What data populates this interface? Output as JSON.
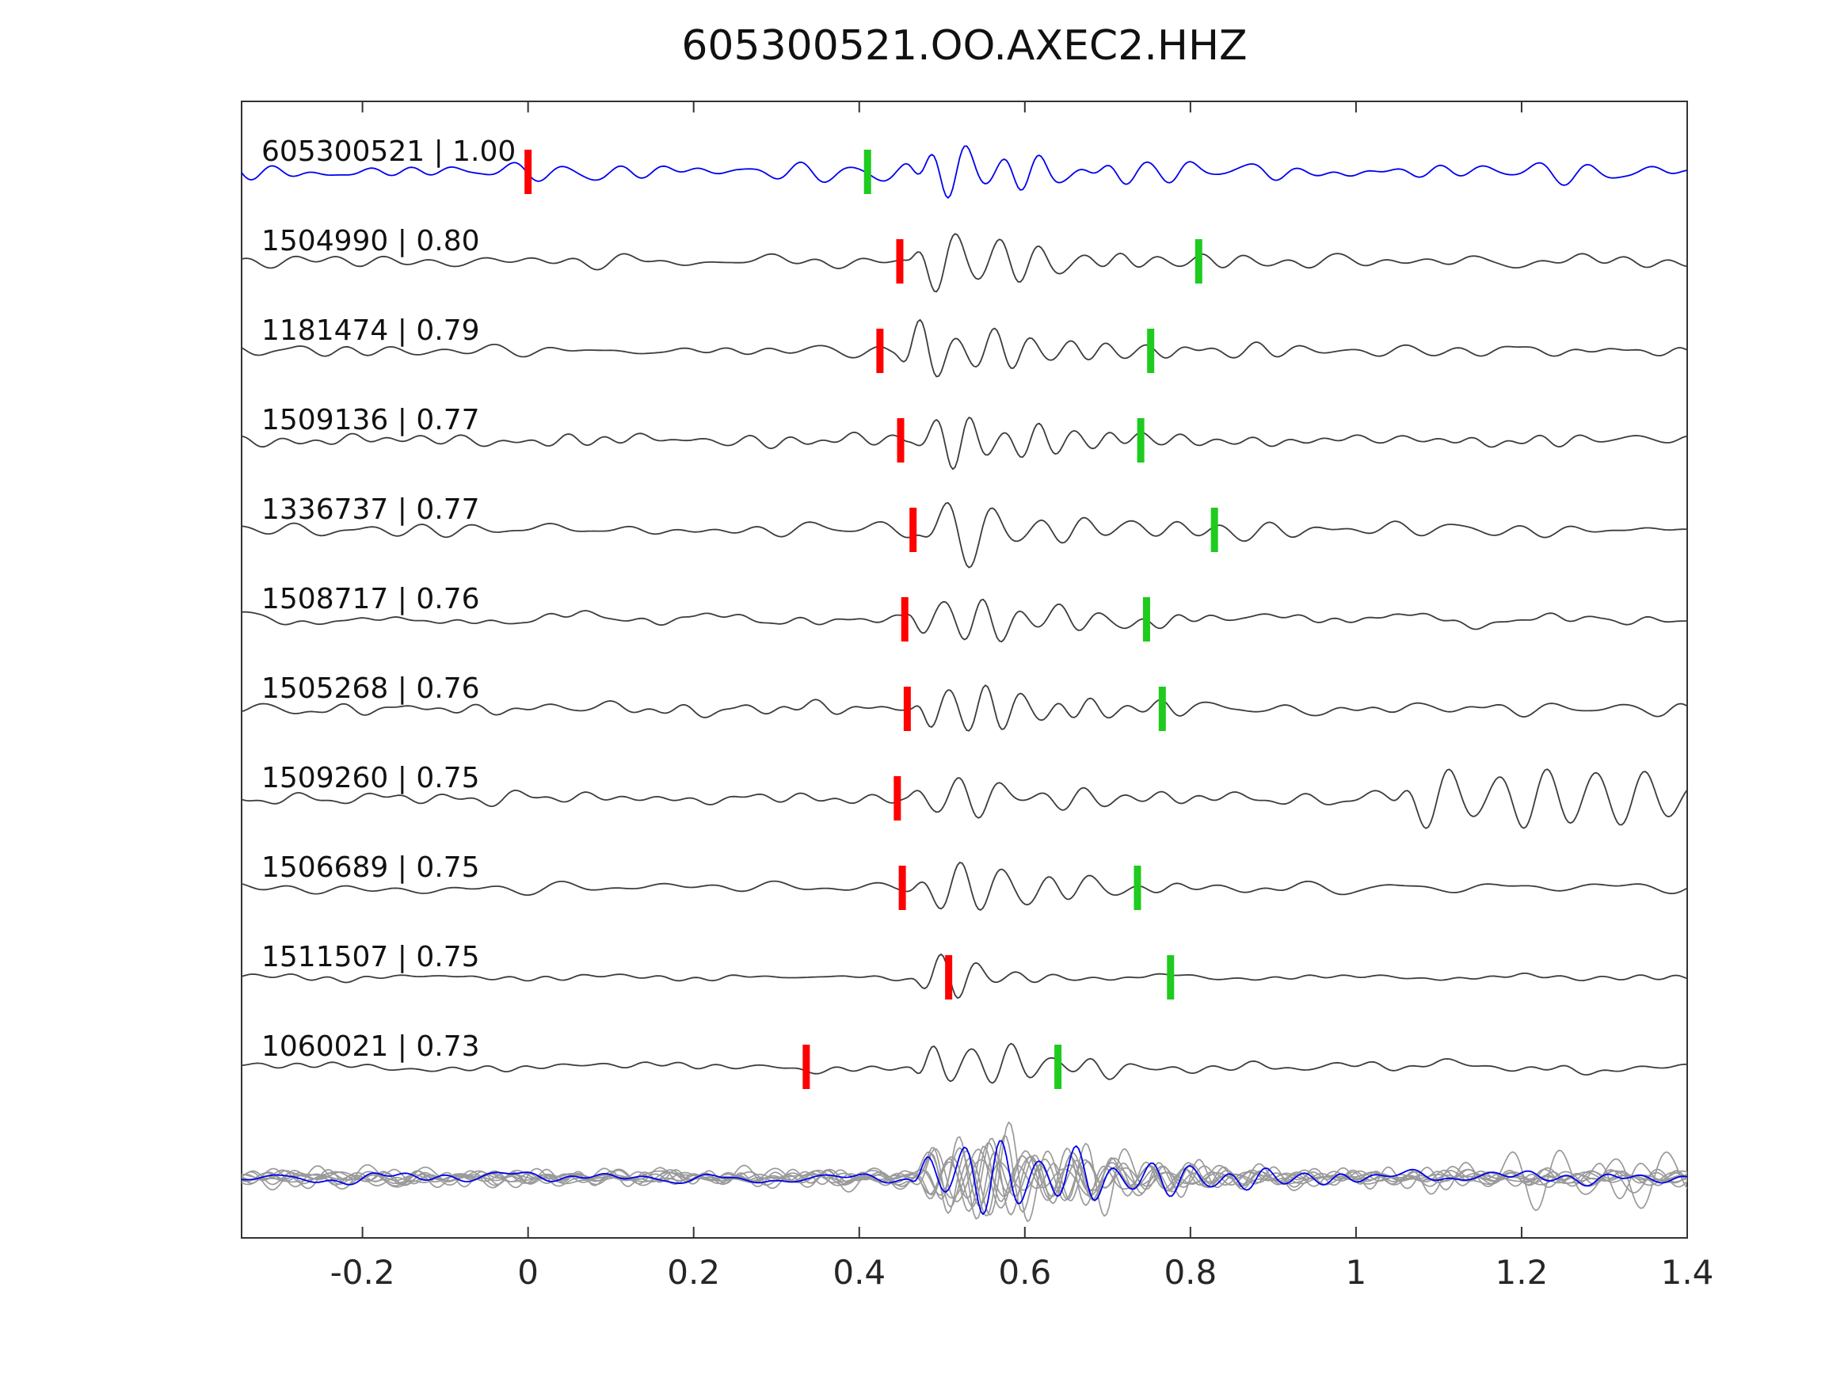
{
  "chart_data": {
    "type": "line",
    "title": "605300521.OO.AXEC2.HHZ",
    "xlim": [
      -0.346,
      1.4
    ],
    "x_ticks": [
      -0.2,
      0,
      0.2,
      0.4,
      0.6,
      0.8,
      1,
      1.2,
      1.4
    ],
    "x_tick_labels": [
      "-0.2",
      "0",
      "0.2",
      "0.4",
      "0.6",
      "0.8",
      "1",
      "1.2",
      "1.4"
    ],
    "grid": false,
    "legend": "none",
    "colors": {
      "template_trace": "#0000ee",
      "detection_trace": "#3c3c3c",
      "pick_red": "#ff0000",
      "pick_green": "#1ecb1e",
      "overlay_gray": "#9a9a9a",
      "axis": "#333333",
      "tick_label": "#262626"
    },
    "traces": [
      {
        "label": "605300521 | 1.00",
        "id": "605300521",
        "cc": 1.0,
        "color": "template",
        "red_pick": 0.0,
        "green_pick": 0.41,
        "synth": {
          "seed": 11,
          "onset": 0.45,
          "amp": 52,
          "freq": 23,
          "decay": 7.0,
          "noise": 10
        }
      },
      {
        "label": "1504990 | 0.80",
        "id": "1504990",
        "cc": 0.8,
        "color": "detection",
        "red_pick": 0.449,
        "green_pick": 0.81,
        "synth": {
          "seed": 22,
          "onset": 0.455,
          "amp": 60,
          "freq": 20,
          "decay": 6.5,
          "noise": 8
        }
      },
      {
        "label": "1181474 | 0.79",
        "id": "1181474",
        "cc": 0.79,
        "color": "detection",
        "red_pick": 0.425,
        "green_pick": 0.752,
        "synth": {
          "seed": 33,
          "onset": 0.44,
          "amp": 62,
          "freq": 22,
          "decay": 8.0,
          "noise": 7
        }
      },
      {
        "label": "1509136 | 0.77",
        "id": "1509136",
        "cc": 0.77,
        "color": "detection",
        "red_pick": 0.45,
        "green_pick": 0.74,
        "synth": {
          "seed": 44,
          "onset": 0.455,
          "amp": 55,
          "freq": 24,
          "decay": 9.0,
          "noise": 7
        }
      },
      {
        "label": "1336737 | 0.77",
        "id": "1336737",
        "cc": 0.77,
        "color": "detection",
        "red_pick": 0.465,
        "green_pick": 0.829,
        "synth": {
          "seed": 55,
          "onset": 0.46,
          "amp": 64,
          "freq": 18,
          "decay": 7.0,
          "noise": 8
        }
      },
      {
        "label": "1508717 | 0.76",
        "id": "1508717",
        "cc": 0.76,
        "color": "detection",
        "red_pick": 0.455,
        "green_pick": 0.747,
        "synth": {
          "seed": 66,
          "onset": 0.45,
          "amp": 60,
          "freq": 21,
          "decay": 8.0,
          "noise": 8
        }
      },
      {
        "label": "1505268 | 0.76",
        "id": "1505268",
        "cc": 0.76,
        "color": "detection",
        "red_pick": 0.458,
        "green_pick": 0.766,
        "synth": {
          "seed": 77,
          "onset": 0.46,
          "amp": 56,
          "freq": 23,
          "decay": 8.5,
          "noise": 8
        }
      },
      {
        "label": "1509260 | 0.75",
        "id": "1509260",
        "cc": 0.75,
        "color": "detection",
        "red_pick": 0.446,
        "green_pick": null,
        "synth": {
          "seed": 88,
          "onset": 0.45,
          "amp": 55,
          "freq": 20,
          "decay": 9.0,
          "noise": 7,
          "extra": {
            "start": 1.04,
            "amp": 42,
            "freq": 17,
            "decay": 1.2
          }
        }
      },
      {
        "label": "1506689 | 0.75",
        "id": "1506689",
        "cc": 0.75,
        "color": "detection",
        "red_pick": 0.452,
        "green_pick": 0.736,
        "synth": {
          "seed": 99,
          "onset": 0.455,
          "amp": 58,
          "freq": 19,
          "decay": 7.5,
          "noise": 8
        }
      },
      {
        "label": "1511507 | 0.75",
        "id": "1511507",
        "cc": 0.75,
        "color": "detection",
        "red_pick": 0.508,
        "green_pick": 0.776,
        "synth": {
          "seed": 110,
          "onset": 0.46,
          "amp": 78,
          "freq": 22,
          "decay": 18.0,
          "noise": 4
        }
      },
      {
        "label": "1060021 | 0.73",
        "id": "1060021",
        "cc": 0.73,
        "color": "detection",
        "red_pick": 0.336,
        "green_pick": 0.64,
        "synth": {
          "seed": 121,
          "onset": 0.46,
          "amp": 60,
          "freq": 21,
          "decay": 8.0,
          "noise": 7
        }
      }
    ],
    "overlay": {
      "description": "stack of aligned detections (gray) with template (blue)",
      "count_gray": 9,
      "synth": {
        "seed": 500,
        "onset": 0.458,
        "amp": 66,
        "freq": 21,
        "decay": 4.5,
        "noise": 9
      },
      "template_synth": {
        "seed": 600,
        "onset": 0.458,
        "amp": 70,
        "freq": 22,
        "decay": 5.0,
        "noise": 7
      }
    }
  }
}
